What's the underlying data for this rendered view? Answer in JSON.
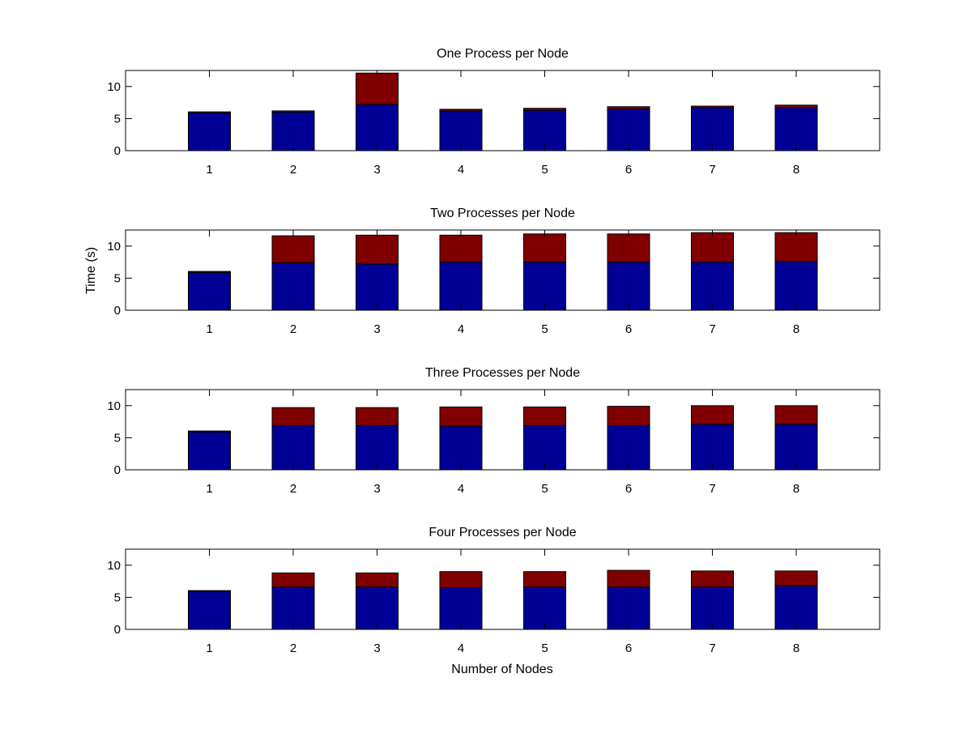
{
  "figure": {
    "xlabel": "Number of Nodes",
    "ylabel": "Time (s)"
  },
  "colors": {
    "bottom": "#000096",
    "top": "#800000",
    "edge": "#000000",
    "axes": "#000000",
    "background": "#ffffff"
  },
  "chart_data": [
    {
      "type": "bar",
      "stacked": true,
      "title": "One Process per Node",
      "xlabel": "",
      "ylabel": "",
      "categories": [
        "1",
        "2",
        "3",
        "4",
        "5",
        "6",
        "7",
        "8"
      ],
      "ylim": [
        0,
        12.5
      ],
      "yticks": [
        "0",
        "5",
        "10"
      ],
      "grid": false,
      "series": [
        {
          "values": [
            5.9,
            6.0,
            7.2,
            6.2,
            6.3,
            6.5,
            6.7,
            6.7
          ]
        },
        {
          "values": [
            0.15,
            0.2,
            4.9,
            0.25,
            0.3,
            0.35,
            0.25,
            0.4
          ]
        }
      ]
    },
    {
      "type": "bar",
      "stacked": true,
      "title": "Two Processes per Node",
      "xlabel": "",
      "ylabel": "Time (s)",
      "categories": [
        "1",
        "2",
        "3",
        "4",
        "5",
        "6",
        "7",
        "8"
      ],
      "ylim": [
        0,
        12.5
      ],
      "yticks": [
        "0",
        "5",
        "10"
      ],
      "grid": false,
      "series": [
        {
          "values": [
            5.9,
            7.4,
            7.2,
            7.5,
            7.5,
            7.5,
            7.5,
            7.6
          ]
        },
        {
          "values": [
            0.15,
            4.2,
            4.5,
            4.2,
            4.4,
            4.4,
            4.6,
            4.5
          ]
        }
      ]
    },
    {
      "type": "bar",
      "stacked": true,
      "title": "Three Processes per Node",
      "xlabel": "",
      "ylabel": "",
      "categories": [
        "1",
        "2",
        "3",
        "4",
        "5",
        "6",
        "7",
        "8"
      ],
      "ylim": [
        0,
        12.5
      ],
      "yticks": [
        "0",
        "5",
        "10"
      ],
      "grid": false,
      "series": [
        {
          "values": [
            5.9,
            6.9,
            6.9,
            6.8,
            6.9,
            6.9,
            7.1,
            7.1
          ]
        },
        {
          "values": [
            0.15,
            2.8,
            2.8,
            3.0,
            2.9,
            3.0,
            2.9,
            2.9
          ]
        }
      ]
    },
    {
      "type": "bar",
      "stacked": true,
      "title": "Four Processes per Node",
      "xlabel": "Number of Nodes",
      "ylabel": "",
      "categories": [
        "1",
        "2",
        "3",
        "4",
        "5",
        "6",
        "7",
        "8"
      ],
      "ylim": [
        0,
        12.5
      ],
      "yticks": [
        "0",
        "5",
        "10"
      ],
      "grid": false,
      "series": [
        {
          "values": [
            5.9,
            6.6,
            6.6,
            6.5,
            6.6,
            6.6,
            6.6,
            6.8
          ]
        },
        {
          "values": [
            0.15,
            2.2,
            2.2,
            2.5,
            2.4,
            2.6,
            2.5,
            2.3
          ]
        }
      ]
    }
  ]
}
